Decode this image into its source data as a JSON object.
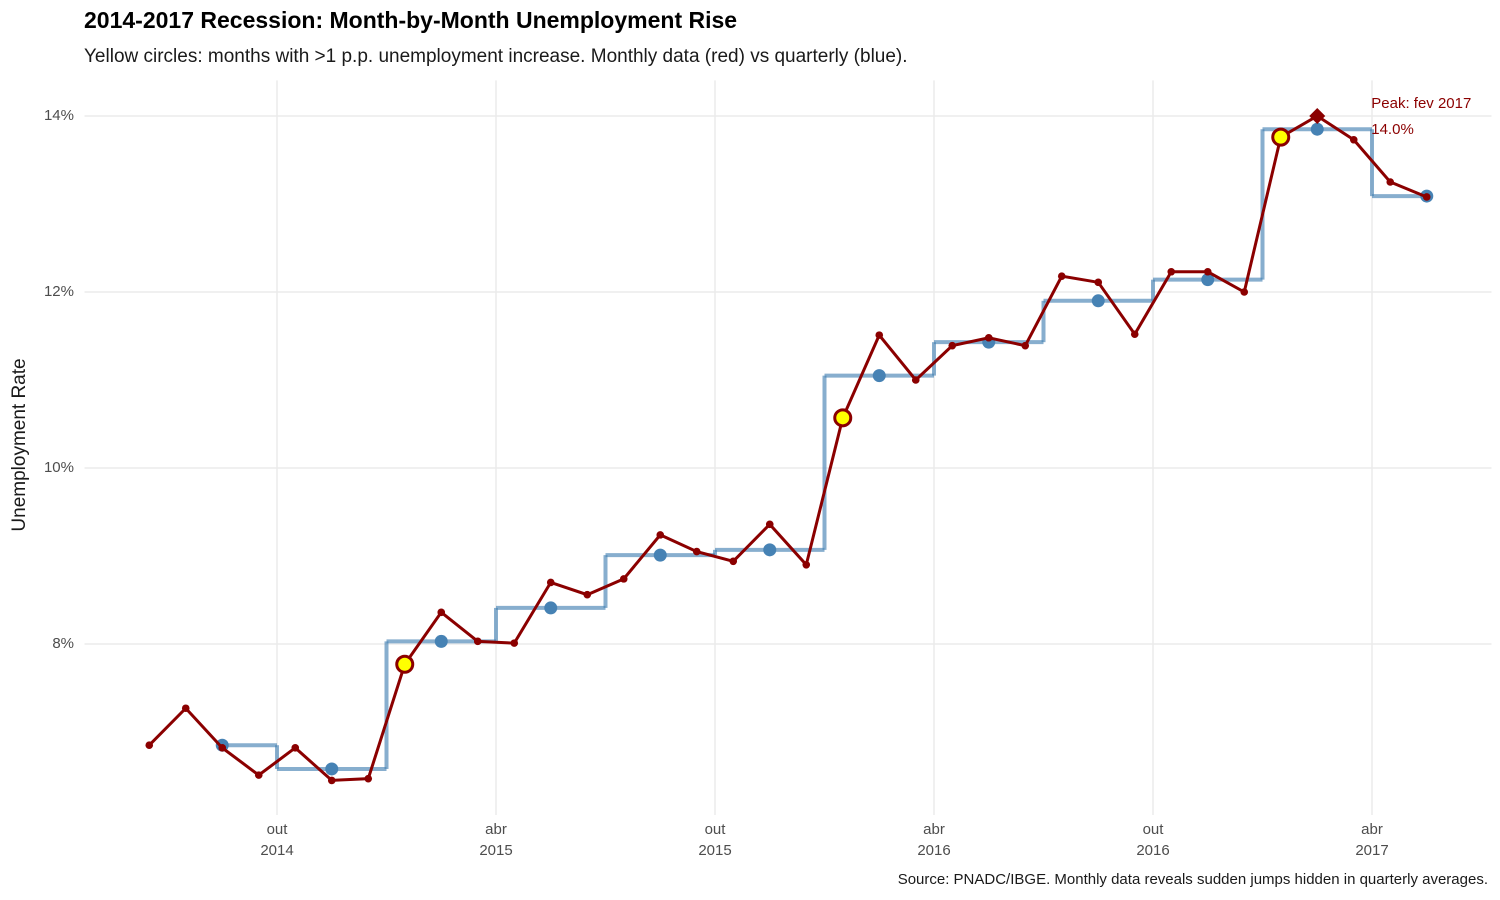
{
  "chart_data": {
    "type": "line",
    "title": "2014-2017 Recession: Month-by-Month Unemployment Rise",
    "subtitle": "Yellow circles: months with >1 p.p. unemployment increase. Monthly data (red) vs quarterly (blue).",
    "y_label": "Unemployment Rate",
    "caption": "Source: PNADC/IBGE. Monthly data reveals sudden jumps hidden in quarterly averages.",
    "series": [
      {
        "color": "#8b0000",
        "x": [
          "2014-06",
          "2014-07",
          "2014-08",
          "2014-09",
          "2014-10",
          "2014-11",
          "2014-12",
          "2015-01",
          "2015-02",
          "2015-03",
          "2015-04",
          "2015-05",
          "2015-06",
          "2015-07",
          "2015-08",
          "2015-09",
          "2015-10",
          "2015-11",
          "2015-12",
          "2016-01",
          "2016-02",
          "2016-03",
          "2016-04",
          "2016-05",
          "2016-06",
          "2016-07",
          "2016-08",
          "2016-09",
          "2016-10",
          "2016-11",
          "2016-12",
          "2017-01",
          "2017-02",
          "2017-03",
          "2017-04",
          "2017-05"
        ],
        "values": [
          6.85,
          7.27,
          6.82,
          6.51,
          6.82,
          6.45,
          6.47,
          7.77,
          8.36,
          8.03,
          8.01,
          8.7,
          8.56,
          8.74,
          9.24,
          9.05,
          8.94,
          9.36,
          8.9,
          10.57,
          11.51,
          11.0,
          11.39,
          11.48,
          11.39,
          12.18,
          12.11,
          11.52,
          12.23,
          12.23,
          12.0,
          13.76,
          14.0,
          13.73,
          13.25,
          13.08
        ]
      },
      {
        "color": "#4682b4",
        "step": true,
        "x": [
          "2014-08",
          "2014-11",
          "2015-02",
          "2015-05",
          "2015-08",
          "2015-11",
          "2016-02",
          "2016-05",
          "2016-08",
          "2016-11",
          "2017-02",
          "2017-05"
        ],
        "values": [
          6.85,
          6.58,
          8.03,
          8.41,
          9.01,
          9.07,
          11.05,
          11.43,
          11.9,
          12.14,
          13.85,
          13.09
        ]
      }
    ],
    "highlight": {
      "color": "#ffff00",
      "x": [
        "2015-01",
        "2016-01",
        "2017-01"
      ]
    },
    "peak": {
      "x": "2017-02",
      "label": "Peak: fev 2017",
      "value_label": "14.0%"
    },
    "xlim": [
      "2014-05",
      "2017-07"
    ],
    "xticks": [
      {
        "value": "2014-10",
        "label": [
          "out",
          "2014"
        ]
      },
      {
        "value": "2015-04",
        "label": [
          "abr",
          "2015"
        ]
      },
      {
        "value": "2015-10",
        "label": [
          "out",
          "2015"
        ]
      },
      {
        "value": "2016-04",
        "label": [
          "abr",
          "2016"
        ]
      },
      {
        "value": "2016-10",
        "label": [
          "out",
          "2016"
        ]
      },
      {
        "value": "2017-04",
        "label": [
          "abr",
          "2017"
        ]
      }
    ],
    "ylim": [
      6.0,
      14.2
    ],
    "yticks": [
      {
        "value": 8,
        "label": "8%"
      },
      {
        "value": 10,
        "label": "10%"
      },
      {
        "value": 12,
        "label": "12%"
      },
      {
        "value": 14,
        "label": "14%"
      }
    ],
    "grid": true
  }
}
